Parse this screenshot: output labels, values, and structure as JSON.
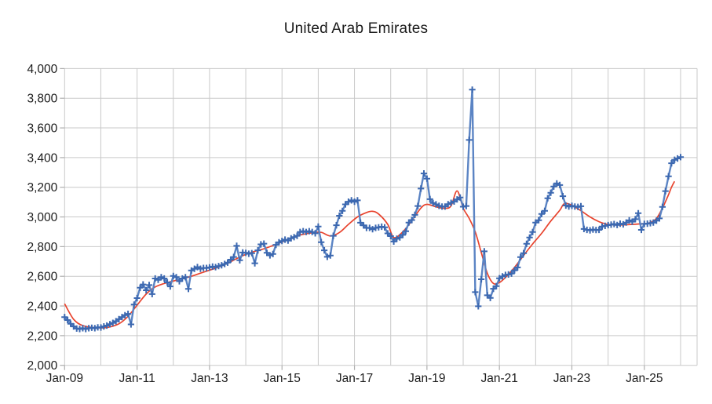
{
  "title": "United Arab Emirates",
  "colors": {
    "series_line": "#5b84c4",
    "series_marker": "#3c68b0",
    "trend_line": "#e8432d",
    "gridline": "#c9c9c9",
    "tick_mark": "#aeaeae",
    "label_text": "#1c1c1c",
    "background": "#ffffff"
  },
  "chart_data": {
    "type": "line",
    "title": "United Arab Emirates",
    "frequency": "monthly",
    "x_start": "2009-01",
    "x_end": "2026-01",
    "grid": true,
    "legend_position": "none",
    "ylim": [
      2000,
      4000
    ],
    "y_tick_step": 200,
    "y_ticks": [
      2000,
      2200,
      2400,
      2600,
      2800,
      3000,
      3200,
      3400,
      3600,
      3800,
      4000
    ],
    "y_tick_labels": [
      "2,000",
      "2,200",
      "2,400",
      "2,600",
      "2,800",
      "3,000",
      "3,200",
      "3,400",
      "3,600",
      "3,800",
      "4,000"
    ],
    "x_tick_labels": [
      "Jan-09",
      "Jan-11",
      "Jan-13",
      "Jan-15",
      "Jan-17",
      "Jan-19",
      "Jan-21",
      "Jan-23",
      "Jan-25"
    ],
    "x_tick_month_indices": [
      0,
      24,
      48,
      72,
      96,
      120,
      144,
      168,
      192
    ],
    "series": [
      {
        "name": "monthly-values",
        "style": "line-with-plus-markers",
        "color": "#5b84c4",
        "values": [
          2325,
          2305,
          2280,
          2262,
          2248,
          2245,
          2250,
          2245,
          2250,
          2253,
          2250,
          2256,
          2255,
          2262,
          2268,
          2277,
          2286,
          2297,
          2311,
          2325,
          2338,
          2347,
          2276,
          2409,
          2453,
          2523,
          2545,
          2506,
          2541,
          2480,
          2585,
          2576,
          2594,
          2585,
          2559,
          2532,
          2602,
          2594,
          2567,
          2585,
          2594,
          2515,
          2639,
          2651,
          2662,
          2651,
          2656,
          2656,
          2660,
          2665,
          2662,
          2669,
          2674,
          2683,
          2692,
          2712,
          2730,
          2805,
          2708,
          2760,
          2758,
          2752,
          2756,
          2688,
          2775,
          2815,
          2820,
          2758,
          2741,
          2750,
          2812,
          2829,
          2838,
          2847,
          2841,
          2856,
          2864,
          2873,
          2899,
          2904,
          2899,
          2904,
          2899,
          2890,
          2935,
          2830,
          2775,
          2731,
          2740,
          2873,
          2944,
          3008,
          3041,
          3085,
          3103,
          3112,
          3103,
          3112,
          2961,
          2943,
          2926,
          2926,
          2917,
          2926,
          2930,
          2934,
          2930,
          2889,
          2871,
          2834,
          2853,
          2862,
          2879,
          2904,
          2962,
          2979,
          3014,
          3074,
          3191,
          3293,
          3258,
          3120,
          3094,
          3085,
          3075,
          3070,
          3070,
          3086,
          3095,
          3104,
          3118,
          3131,
          3069,
          3074,
          3519,
          3858,
          2493,
          2398,
          2580,
          2768,
          2472,
          2454,
          2516,
          2534,
          2587,
          2599,
          2609,
          2612,
          2618,
          2640,
          2660,
          2729,
          2756,
          2819,
          2861,
          2898,
          2962,
          2978,
          3020,
          3041,
          3126,
          3163,
          3205,
          3226,
          3215,
          3140,
          3077,
          3070,
          3075,
          3070,
          3068,
          3072,
          2919,
          2913,
          2910,
          2915,
          2912,
          2913,
          2935,
          2940,
          2945,
          2948,
          2952,
          2946,
          2955,
          2950,
          2962,
          2977,
          2968,
          2985,
          3025,
          2913,
          2953,
          2955,
          2958,
          2962,
          2975,
          2990,
          3068,
          3174,
          3274,
          3362,
          3385,
          3394,
          3403
        ]
      },
      {
        "name": "smoothed-trend",
        "style": "smooth-line",
        "color": "#e8432d",
        "keypoints": [
          [
            0,
            2415
          ],
          [
            3,
            2310
          ],
          [
            6,
            2268
          ],
          [
            10,
            2254
          ],
          [
            14,
            2255
          ],
          [
            18,
            2280
          ],
          [
            21,
            2330
          ],
          [
            24,
            2405
          ],
          [
            27,
            2480
          ],
          [
            30,
            2528
          ],
          [
            34,
            2558
          ],
          [
            38,
            2578
          ],
          [
            42,
            2600
          ],
          [
            46,
            2628
          ],
          [
            50,
            2655
          ],
          [
            54,
            2688
          ],
          [
            58,
            2730
          ],
          [
            62,
            2762
          ],
          [
            66,
            2785
          ],
          [
            70,
            2815
          ],
          [
            74,
            2848
          ],
          [
            78,
            2878
          ],
          [
            82,
            2893
          ],
          [
            85,
            2896
          ],
          [
            88,
            2872
          ],
          [
            91,
            2895
          ],
          [
            94,
            2950
          ],
          [
            97,
            3000
          ],
          [
            100,
            3030
          ],
          [
            102,
            3038
          ],
          [
            104,
            3020
          ],
          [
            107,
            2950
          ],
          [
            109,
            2861
          ],
          [
            112,
            2900
          ],
          [
            115,
            2975
          ],
          [
            118,
            3060
          ],
          [
            120,
            3085
          ],
          [
            123,
            3068
          ],
          [
            126,
            3058
          ],
          [
            128,
            3075
          ],
          [
            130,
            3176
          ],
          [
            132,
            3060
          ],
          [
            134,
            2990
          ],
          [
            136,
            2900
          ],
          [
            138,
            2760
          ],
          [
            140,
            2620
          ],
          [
            142,
            2552
          ],
          [
            144,
            2558
          ],
          [
            146,
            2592
          ],
          [
            149,
            2660
          ],
          [
            152,
            2740
          ],
          [
            155,
            2818
          ],
          [
            158,
            2890
          ],
          [
            161,
            2972
          ],
          [
            164,
            3045
          ],
          [
            165,
            3080
          ],
          [
            166,
            3092
          ],
          [
            168,
            3078
          ],
          [
            171,
            3042
          ],
          [
            174,
            3000
          ],
          [
            177,
            2968
          ],
          [
            180,
            2950
          ],
          [
            184,
            2946
          ],
          [
            188,
            2950
          ],
          [
            192,
            2955
          ],
          [
            194,
            2962
          ],
          [
            196,
            2990
          ],
          [
            198,
            3060
          ],
          [
            200,
            3150
          ],
          [
            201,
            3200
          ],
          [
            202,
            3240
          ]
        ]
      }
    ]
  }
}
